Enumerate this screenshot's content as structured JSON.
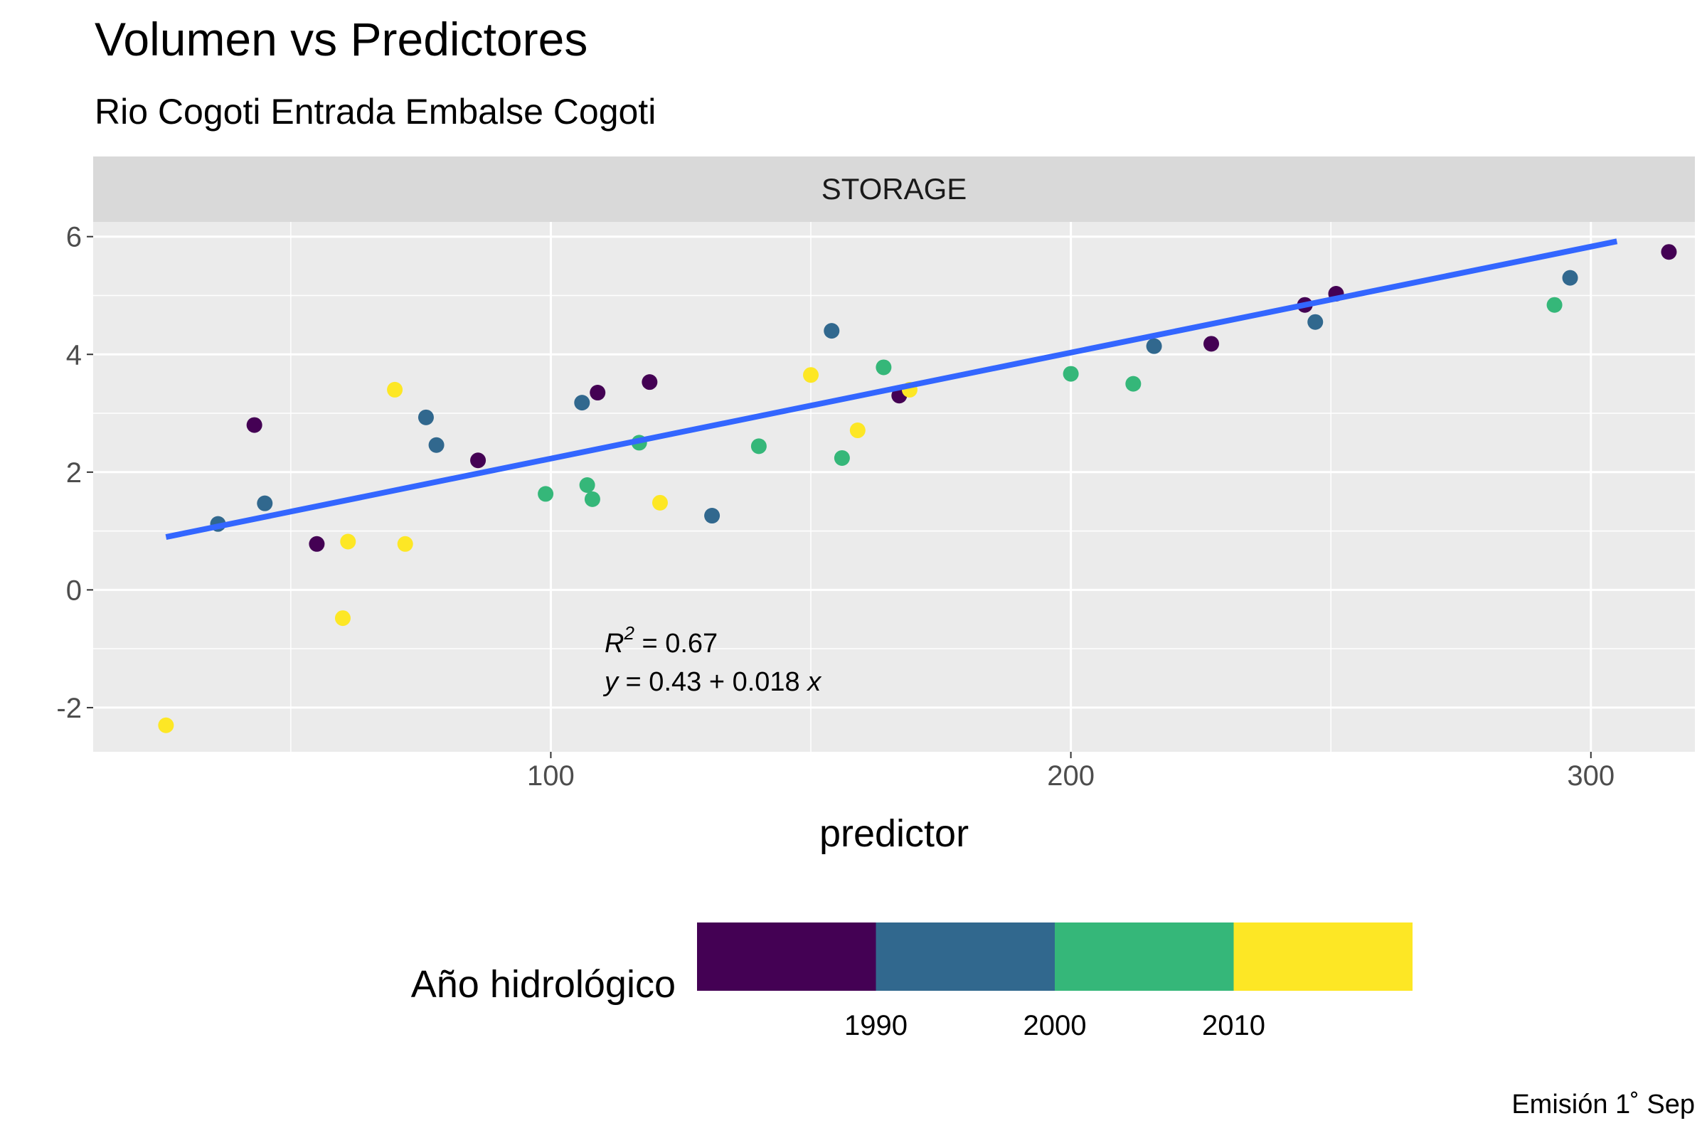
{
  "chart_data": {
    "type": "scatter",
    "title": "Volumen vs Predictores",
    "subtitle": "Rio Cogoti Entrada Embalse Cogoti",
    "facet": "STORAGE",
    "xlabel": "predictor",
    "ylabel": "",
    "xlim": [
      12,
      320
    ],
    "ylim": [
      -2.75,
      6.25
    ],
    "x_ticks": [
      100,
      200,
      300
    ],
    "y_ticks": [
      -2,
      0,
      2,
      4,
      6
    ],
    "grid": true,
    "legend": {
      "title": "Año hidrológico",
      "placement": "bottom",
      "labels": [
        "1990",
        "2000",
        "2010"
      ],
      "colors": [
        "#440154",
        "#31688e",
        "#35b779",
        "#fde725"
      ]
    },
    "fit_line": {
      "intercept": 0.43,
      "slope": 0.018,
      "x_range": [
        26,
        305
      ],
      "color": "#3366ff"
    },
    "annotation": {
      "r2_label": "R",
      "r2_sup": "2",
      "r2_rest": " = 0.67",
      "eq_y": "y",
      "eq_mid": " = 0.43 + 0.018 ",
      "eq_x": "x"
    },
    "caption": "Emisión 1˚ Sep",
    "points": [
      {
        "x": 26,
        "y": -2.3,
        "color": "#fde725"
      },
      {
        "x": 36,
        "y": 1.12,
        "color": "#31688e"
      },
      {
        "x": 43,
        "y": 2.8,
        "color": "#440154"
      },
      {
        "x": 45,
        "y": 1.47,
        "color": "#31688e"
      },
      {
        "x": 55,
        "y": 0.78,
        "color": "#440154"
      },
      {
        "x": 60,
        "y": -0.48,
        "color": "#fde725"
      },
      {
        "x": 61,
        "y": 0.82,
        "color": "#fde725"
      },
      {
        "x": 70,
        "y": 3.4,
        "color": "#fde725"
      },
      {
        "x": 72,
        "y": 0.78,
        "color": "#fde725"
      },
      {
        "x": 76,
        "y": 2.93,
        "color": "#31688e"
      },
      {
        "x": 78,
        "y": 2.46,
        "color": "#31688e"
      },
      {
        "x": 86,
        "y": 2.2,
        "color": "#440154"
      },
      {
        "x": 99,
        "y": 1.63,
        "color": "#35b779"
      },
      {
        "x": 106,
        "y": 3.18,
        "color": "#31688e"
      },
      {
        "x": 107,
        "y": 1.78,
        "color": "#35b779"
      },
      {
        "x": 108,
        "y": 1.54,
        "color": "#35b779"
      },
      {
        "x": 109,
        "y": 3.35,
        "color": "#440154"
      },
      {
        "x": 117,
        "y": 2.5,
        "color": "#35b779"
      },
      {
        "x": 119,
        "y": 3.53,
        "color": "#440154"
      },
      {
        "x": 121,
        "y": 1.48,
        "color": "#fde725"
      },
      {
        "x": 131,
        "y": 1.26,
        "color": "#31688e"
      },
      {
        "x": 140,
        "y": 2.44,
        "color": "#35b779"
      },
      {
        "x": 150,
        "y": 3.65,
        "color": "#fde725"
      },
      {
        "x": 154,
        "y": 4.4,
        "color": "#31688e"
      },
      {
        "x": 156,
        "y": 2.24,
        "color": "#35b779"
      },
      {
        "x": 159,
        "y": 2.71,
        "color": "#fde725"
      },
      {
        "x": 164,
        "y": 3.78,
        "color": "#35b779"
      },
      {
        "x": 167,
        "y": 3.3,
        "color": "#440154"
      },
      {
        "x": 169,
        "y": 3.4,
        "color": "#fde725"
      },
      {
        "x": 200,
        "y": 3.67,
        "color": "#35b779"
      },
      {
        "x": 212,
        "y": 3.5,
        "color": "#35b779"
      },
      {
        "x": 216,
        "y": 4.14,
        "color": "#31688e"
      },
      {
        "x": 227,
        "y": 4.18,
        "color": "#440154"
      },
      {
        "x": 245,
        "y": 4.84,
        "color": "#440154"
      },
      {
        "x": 247,
        "y": 4.55,
        "color": "#31688e"
      },
      {
        "x": 251,
        "y": 5.03,
        "color": "#440154"
      },
      {
        "x": 293,
        "y": 4.84,
        "color": "#35b779"
      },
      {
        "x": 296,
        "y": 5.3,
        "color": "#31688e"
      },
      {
        "x": 315,
        "y": 5.74,
        "color": "#440154"
      }
    ]
  }
}
